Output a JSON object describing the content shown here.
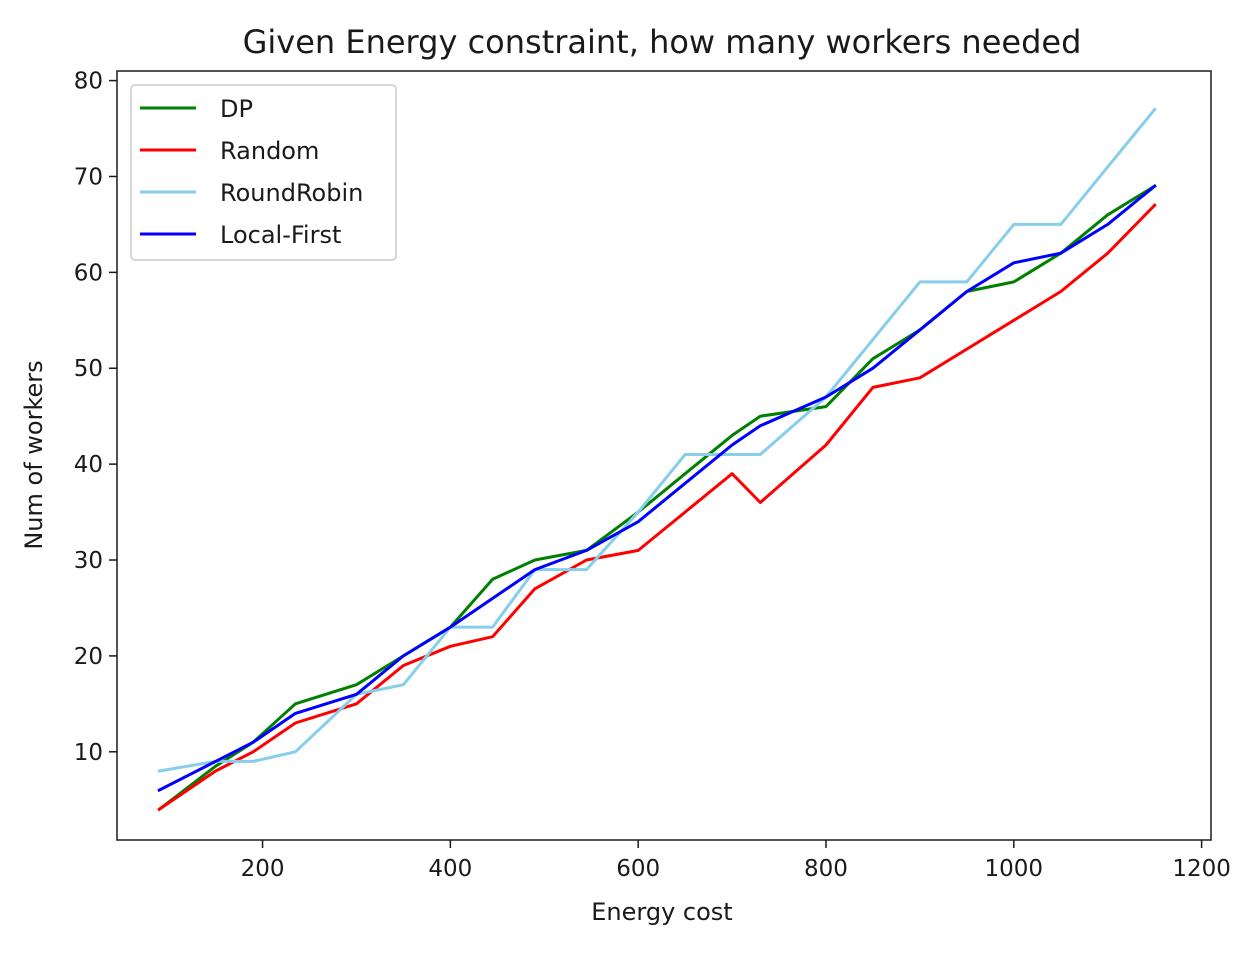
{
  "chart_data": {
    "type": "line",
    "title": "Given Energy constraint, how many workers needed",
    "xlabel": "Energy cost",
    "ylabel": "Num of workers",
    "xlim": [
      45,
      1210
    ],
    "ylim": [
      0.8,
      81
    ],
    "x_ticks": [
      200,
      400,
      600,
      800,
      1000,
      1200
    ],
    "y_ticks": [
      10,
      20,
      30,
      40,
      50,
      60,
      70,
      80
    ],
    "legend_position": "top-left",
    "grid": false,
    "x": [
      90,
      150,
      190,
      235,
      300,
      350,
      400,
      445,
      490,
      545,
      600,
      650,
      700,
      730,
      800,
      850,
      900,
      950,
      1000,
      1050,
      1100,
      1150
    ],
    "series": [
      {
        "name": "DP",
        "color": "#008000",
        "values": [
          4,
          8.5,
          11,
          15,
          17,
          20,
          23,
          28,
          30,
          31,
          35,
          39,
          43,
          45,
          46,
          51,
          54,
          58,
          59,
          62,
          66,
          69
        ]
      },
      {
        "name": "Random",
        "color": "#ff0000",
        "values": [
          4,
          8,
          10,
          13,
          15,
          19,
          21,
          22,
          27,
          30,
          31,
          35,
          39,
          36,
          42,
          48,
          49,
          52,
          55,
          58,
          62,
          67
        ]
      },
      {
        "name": "RoundRobin",
        "color": "#87ceeb",
        "values": [
          8,
          9,
          9,
          10,
          16,
          17,
          23,
          23,
          29,
          29,
          35,
          41,
          41,
          41,
          47,
          53,
          59,
          59,
          65,
          65,
          71,
          77
        ]
      },
      {
        "name": "Local-First",
        "color": "#0000ff",
        "values": [
          6,
          9,
          11,
          14,
          16,
          20,
          23,
          26,
          29,
          31,
          34,
          38,
          42,
          44,
          47,
          50,
          54,
          58,
          61,
          62,
          65,
          69
        ]
      }
    ]
  }
}
